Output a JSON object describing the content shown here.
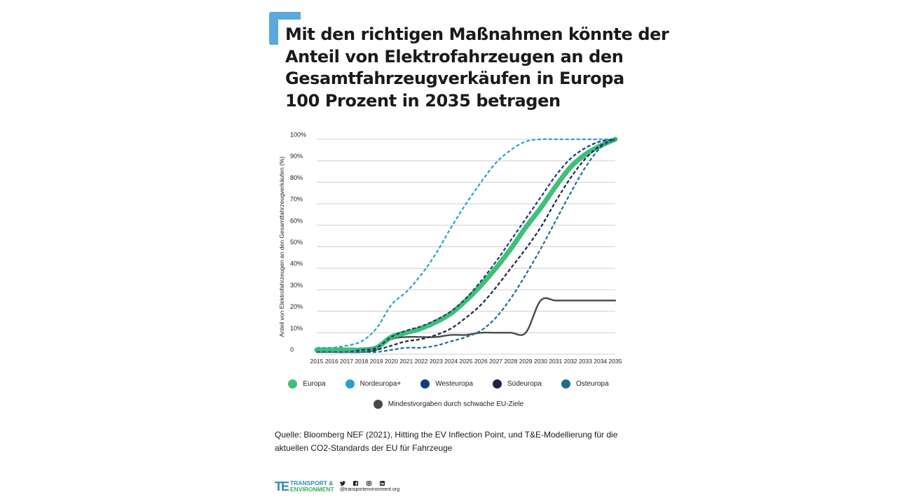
{
  "title_lines": [
    "Mit den richtigen Maßnahmen könnte der",
    "Anteil von Elektrofahrzeugen an den",
    "Gesamtfahrzeugverkäufen in Europa",
    "100 Prozent in 2035 betragen"
  ],
  "colors": {
    "accent": "#5aa9dc",
    "Europa": "#3fbf77",
    "Nordeuropa+": "#29a3c9",
    "Westeuropa": "#133f78",
    "Südeuropa": "#1e2448",
    "Osteuropa": "#1f6c93",
    "Mindestvorgaben": "#4a4a4a",
    "grid": "#cfcfcf"
  },
  "chart_data": {
    "type": "line",
    "ylabel": "Anteil von Elektrofahrzeugen an den Gesamtfahrzeugverkäufen (%)",
    "xlabel": "",
    "x": [
      "2015",
      "2016",
      "2017",
      "2018",
      "2019",
      "2020",
      "2021",
      "2022",
      "2023",
      "2024",
      "2025",
      "2026",
      "2027",
      "2028",
      "2029",
      "2030",
      "2031",
      "2032",
      "2033",
      "2034",
      "2035"
    ],
    "yticks": [
      "0",
      "10%",
      "20%",
      "30%",
      "40%",
      "50%",
      "60%",
      "70%",
      "80%",
      "90%",
      "100%"
    ],
    "ylim": [
      0,
      100
    ],
    "grid": true,
    "series": [
      {
        "name": "Europa",
        "style": "thick",
        "values": [
          2,
          2,
          2,
          2,
          3,
          8,
          10,
          12,
          15,
          19,
          25,
          32,
          40,
          49,
          59,
          68,
          78,
          87,
          93,
          97,
          100
        ]
      },
      {
        "name": "Nordeuropa+",
        "style": "dashed",
        "values": [
          3,
          3,
          4,
          6,
          12,
          23,
          29,
          37,
          47,
          59,
          70,
          80,
          89,
          95,
          99,
          100,
          100,
          100,
          100,
          100,
          100
        ]
      },
      {
        "name": "Westeuropa",
        "style": "dashed",
        "values": [
          1,
          1,
          1,
          2,
          3,
          8,
          11,
          13,
          16,
          20,
          26,
          34,
          43,
          53,
          63,
          73,
          83,
          91,
          96,
          99,
          100
        ]
      },
      {
        "name": "Südeuropa",
        "style": "dashed",
        "values": [
          1,
          1,
          1,
          1,
          2,
          4,
          6,
          7,
          9,
          12,
          17,
          23,
          31,
          40,
          49,
          59,
          71,
          82,
          91,
          97,
          100
        ]
      },
      {
        "name": "Osteuropa",
        "style": "dashed",
        "values": [
          1,
          1,
          1,
          1,
          1,
          2,
          3,
          3,
          4,
          6,
          8,
          11,
          17,
          26,
          37,
          49,
          62,
          75,
          87,
          96,
          100
        ]
      },
      {
        "name": "Mindestvorgaben durch schwache EU-Ziele",
        "style": "solid",
        "values": [
          1,
          1,
          1,
          1,
          2,
          7,
          8,
          8,
          8,
          9,
          9,
          10,
          10,
          10,
          10,
          25,
          25,
          25,
          25,
          25,
          25
        ]
      }
    ]
  },
  "legend": {
    "row1": [
      "Europa",
      "Nordeuropa+",
      "Westeuropa",
      "Südeuropa",
      "Osteuropa"
    ],
    "row2": [
      "Mindestvorgaben durch schwache EU-Ziele"
    ]
  },
  "source_lines": [
    "Quelle: Bloomberg NEF (2021), Hitting the EV Inflection Point, und T&E-Modellierung für die",
    "aktuellen CO2-Standards der EU für Fahrzeuge"
  ],
  "footer": {
    "logo_mark": "TE",
    "logo_line1": "TRANSPORT &",
    "logo_line2": "ENVIRONMENT",
    "social_icons": [
      "twitter-icon",
      "facebook-icon",
      "instagram-icon",
      "linkedin-icon"
    ],
    "website": "@transportenvironment.org"
  }
}
